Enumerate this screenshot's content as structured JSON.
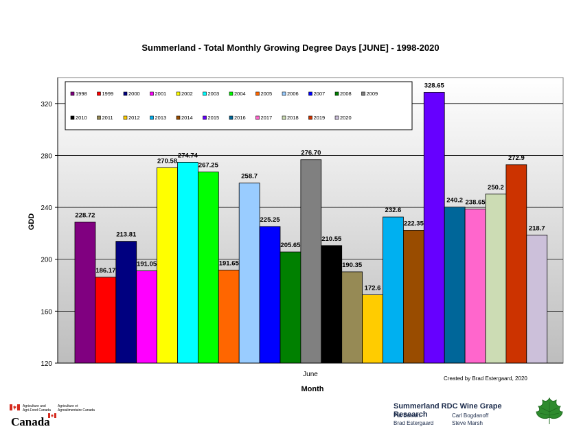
{
  "chart_data": {
    "type": "bar",
    "title": "Summerland - Total Monthly Growing Degree Days [JUNE] - 1998-2020",
    "xlabel": "Month",
    "ylabel": "GDD",
    "categories": [
      "June"
    ],
    "ylim": [
      120,
      340
    ],
    "yticks": [
      120,
      160,
      200,
      240,
      280,
      320
    ],
    "grid": true,
    "legend_position": "top-left",
    "series": [
      {
        "name": "1998",
        "value": 228.72,
        "label": "228.72",
        "color": "#800080"
      },
      {
        "name": "1999",
        "value": 186.17,
        "label": "186.17",
        "color": "#ff0000"
      },
      {
        "name": "2000",
        "value": 213.81,
        "label": "213.81",
        "color": "#000080"
      },
      {
        "name": "2001",
        "value": 191.05,
        "label": "191.05",
        "color": "#ff00ff"
      },
      {
        "name": "2002",
        "value": 270.58,
        "label": "270.58",
        "color": "#ffff00"
      },
      {
        "name": "2003",
        "value": 274.74,
        "label": "274.74",
        "color": "#00ffff"
      },
      {
        "name": "2004",
        "value": 267.25,
        "label": "267.25",
        "color": "#00ff00"
      },
      {
        "name": "2005",
        "value": 191.65,
        "label": "191.65",
        "color": "#ff6600"
      },
      {
        "name": "2006",
        "value": 258.7,
        "label": "258.7",
        "color": "#99ccff"
      },
      {
        "name": "2007",
        "value": 225.25,
        "label": "225.25",
        "color": "#0000ff"
      },
      {
        "name": "2008",
        "value": 205.65,
        "label": "205.65",
        "color": "#008000"
      },
      {
        "name": "2009",
        "value": 276.7,
        "label": "276.70",
        "color": "#808080"
      },
      {
        "name": "2010",
        "value": 210.55,
        "label": "210.55",
        "color": "#000000"
      },
      {
        "name": "2011",
        "value": 190.35,
        "label": "190.35",
        "color": "#968a55"
      },
      {
        "name": "2012",
        "value": 172.6,
        "label": "172.6",
        "color": "#ffcc00"
      },
      {
        "name": "2013",
        "value": 232.6,
        "label": "232.6",
        "color": "#00b0f0"
      },
      {
        "name": "2014",
        "value": 222.35,
        "label": "222.35",
        "color": "#994c00"
      },
      {
        "name": "2015",
        "value": 328.65,
        "label": "328.65",
        "color": "#6600ff"
      },
      {
        "name": "2016",
        "value": 240.2,
        "label": "240.2",
        "color": "#006699"
      },
      {
        "name": "2017",
        "value": 238.65,
        "label": "238.65",
        "color": "#ff66cc"
      },
      {
        "name": "2018",
        "value": 250.2,
        "label": "250.2",
        "color": "#ccdcb4"
      },
      {
        "name": "2019",
        "value": 272.9,
        "label": "272.9",
        "color": "#cc3300"
      },
      {
        "name": "2020",
        "value": 218.7,
        "label": "218.7",
        "color": "#ccc0da"
      }
    ]
  },
  "annotations": {
    "credit": "Created by Brad Estergaard, 2020"
  },
  "footer": {
    "gov_en_line1": "Agriculture and",
    "gov_en_line2": "Agri-Food Canada",
    "gov_fr_line1": "Agriculture et",
    "gov_fr_line2": "Agroalimentaire Canada",
    "wordmark": "Canada",
    "research_title": "Summerland RDC Wine Grape Research",
    "names": [
      "Pat Bowen",
      "Carl Bogdanoff",
      "Brad Estergaard",
      "Steve Marsh"
    ]
  },
  "colors": {
    "plot_gradient_top": "#ffffff",
    "plot_gradient_bottom": "#bdbdbd",
    "flag_red": "#d52b1e",
    "leaf_green": "#2e8b2e"
  }
}
